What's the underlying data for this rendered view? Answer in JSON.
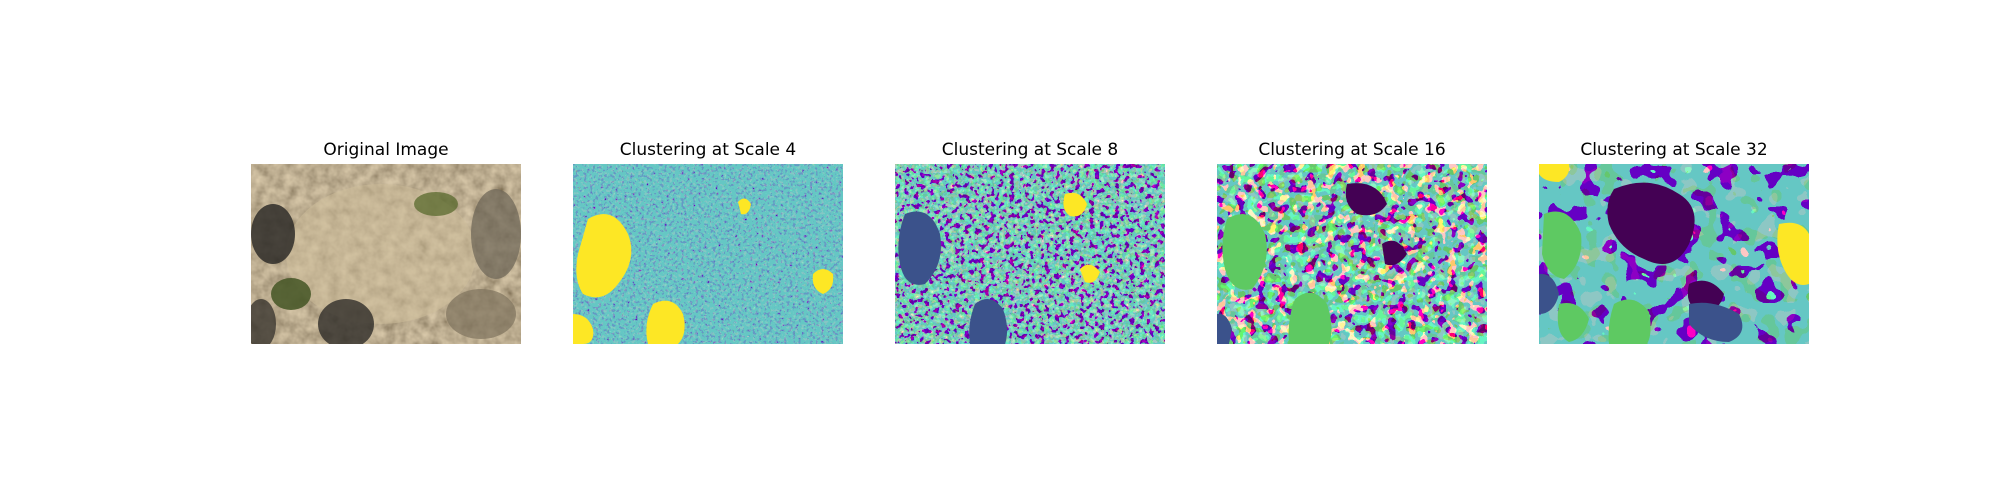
{
  "figure": {
    "panels": [
      {
        "title": "Original Image"
      },
      {
        "title": "Clustering at Scale 4"
      },
      {
        "title": "Clustering at Scale 8"
      },
      {
        "title": "Clustering at Scale 16"
      },
      {
        "title": "Clustering at Scale 32"
      }
    ],
    "cluster_palette": [
      "#440154",
      "#3b528b",
      "#21918c",
      "#5ec962",
      "#fde725"
    ],
    "photo_palette": [
      "#b5a27f",
      "#8a7b61",
      "#4e4a40",
      "#2f2d29",
      "#6b7a3a",
      "#cfc2a2"
    ]
  }
}
